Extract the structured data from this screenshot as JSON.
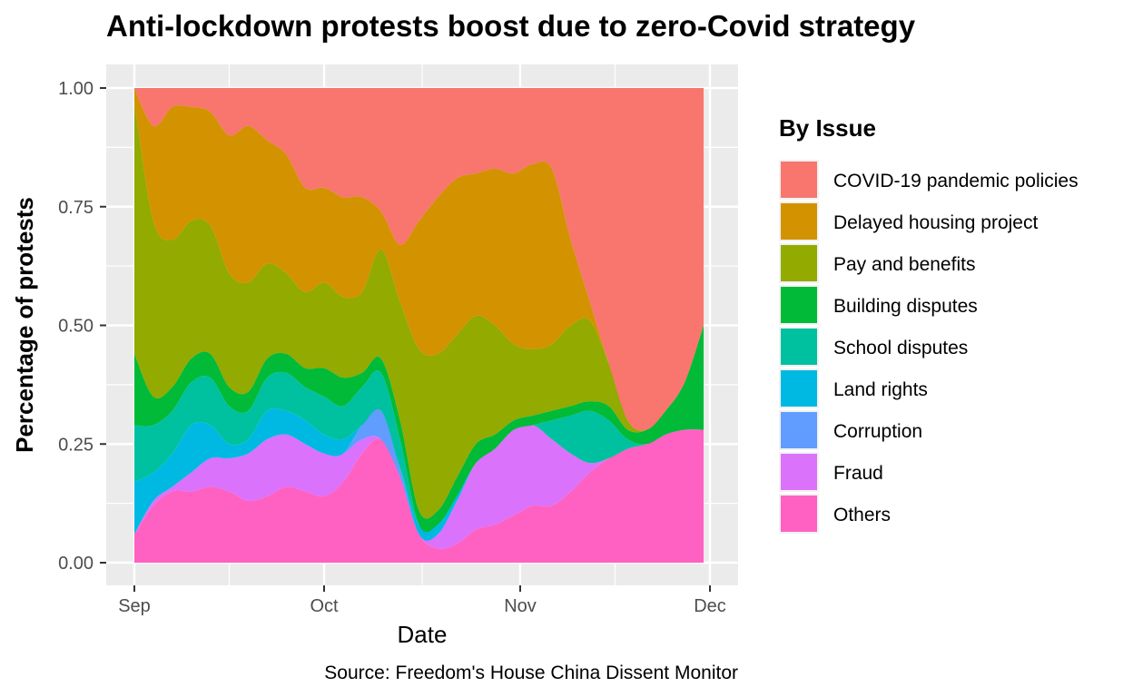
{
  "chart_data": {
    "type": "area",
    "stacked": true,
    "normalized": true,
    "title": "Anti-lockdown protests boost due to zero-Covid strategy",
    "xlabel": "Date",
    "ylabel": "Percentage of protests",
    "caption": "Source: Freedom's House China Dissent Monitor",
    "x_ticks": [
      "Sep",
      "Oct",
      "Nov",
      "Dec"
    ],
    "y_ticks": [
      "0.00",
      "0.25",
      "0.50",
      "0.75",
      "1.00"
    ],
    "ylim": [
      0,
      1
    ],
    "grid": true,
    "legend_title": "By Issue",
    "legend_position": "right",
    "x": [
      "2022-09-01",
      "2022-09-04",
      "2022-09-07",
      "2022-09-10",
      "2022-09-13",
      "2022-09-16",
      "2022-09-19",
      "2022-09-22",
      "2022-09-25",
      "2022-09-28",
      "2022-10-01",
      "2022-10-04",
      "2022-10-07",
      "2022-10-10",
      "2022-10-13",
      "2022-10-16",
      "2022-10-19",
      "2022-10-22",
      "2022-10-25",
      "2022-10-28",
      "2022-10-31",
      "2022-11-03",
      "2022-11-06",
      "2022-11-09",
      "2022-11-12",
      "2022-11-15",
      "2022-11-18",
      "2022-11-21",
      "2022-11-24",
      "2022-11-27",
      "2022-11-30"
    ],
    "series": [
      {
        "name": "Others",
        "color": "#FF61C3",
        "values": [
          0.06,
          0.12,
          0.15,
          0.15,
          0.16,
          0.15,
          0.13,
          0.14,
          0.16,
          0.15,
          0.14,
          0.17,
          0.23,
          0.26,
          0.18,
          0.06,
          0.03,
          0.04,
          0.07,
          0.08,
          0.1,
          0.12,
          0.12,
          0.15,
          0.19,
          0.22,
          0.24,
          0.25,
          0.27,
          0.28,
          0.28
        ]
      },
      {
        "name": "Fraud",
        "color": "#DB72FB",
        "values": [
          0.0,
          0.01,
          0.01,
          0.04,
          0.06,
          0.07,
          0.1,
          0.12,
          0.11,
          0.1,
          0.09,
          0.06,
          0.03,
          0.0,
          0.0,
          0.0,
          0.03,
          0.09,
          0.14,
          0.16,
          0.18,
          0.17,
          0.14,
          0.08,
          0.02,
          0.0,
          0.0,
          0.0,
          0.0,
          0.0,
          0.0
        ]
      },
      {
        "name": "Corruption",
        "color": "#619CFF",
        "values": [
          0.0,
          0.0,
          0.0,
          0.0,
          0.0,
          0.0,
          0.0,
          0.0,
          0.0,
          0.0,
          0.0,
          0.0,
          0.03,
          0.06,
          0.02,
          0.0,
          0.0,
          0.0,
          0.0,
          0.0,
          0.0,
          0.0,
          0.0,
          0.0,
          0.0,
          0.0,
          0.0,
          0.0,
          0.0,
          0.0,
          0.0
        ]
      },
      {
        "name": "Land rights",
        "color": "#00B9E3",
        "values": [
          0.11,
          0.06,
          0.07,
          0.1,
          0.07,
          0.03,
          0.03,
          0.06,
          0.05,
          0.05,
          0.04,
          0.03,
          0.0,
          0.0,
          0.0,
          0.02,
          0.02,
          0.01,
          0.0,
          0.0,
          0.0,
          0.0,
          0.0,
          0.0,
          0.0,
          0.0,
          0.0,
          0.0,
          0.0,
          0.0,
          0.0
        ]
      },
      {
        "name": "School disputes",
        "color": "#00C19F",
        "values": [
          0.12,
          0.1,
          0.09,
          0.09,
          0.1,
          0.08,
          0.06,
          0.07,
          0.08,
          0.07,
          0.08,
          0.07,
          0.08,
          0.08,
          0.06,
          0.0,
          0.0,
          0.0,
          0.0,
          0.0,
          0.0,
          0.0,
          0.04,
          0.08,
          0.11,
          0.08,
          0.02,
          0.0,
          0.0,
          0.0,
          0.0
        ]
      },
      {
        "name": "Building disputes",
        "color": "#00BA38",
        "values": [
          0.15,
          0.06,
          0.05,
          0.05,
          0.05,
          0.04,
          0.04,
          0.04,
          0.04,
          0.04,
          0.06,
          0.06,
          0.03,
          0.03,
          0.04,
          0.03,
          0.03,
          0.04,
          0.04,
          0.03,
          0.02,
          0.02,
          0.02,
          0.02,
          0.02,
          0.03,
          0.02,
          0.03,
          0.05,
          0.1,
          0.22
        ]
      },
      {
        "name": "Pay and benefits",
        "color": "#93AA00",
        "values": [
          0.53,
          0.37,
          0.31,
          0.29,
          0.27,
          0.24,
          0.23,
          0.2,
          0.17,
          0.16,
          0.18,
          0.17,
          0.17,
          0.23,
          0.25,
          0.34,
          0.33,
          0.3,
          0.27,
          0.23,
          0.16,
          0.14,
          0.14,
          0.17,
          0.17,
          0.09,
          0.02,
          0.0,
          0.0,
          0.0,
          0.0
        ]
      },
      {
        "name": "Delayed housing project",
        "color": "#D39200",
        "values": [
          0.03,
          0.2,
          0.28,
          0.24,
          0.24,
          0.29,
          0.33,
          0.26,
          0.25,
          0.22,
          0.2,
          0.21,
          0.2,
          0.08,
          0.12,
          0.27,
          0.33,
          0.33,
          0.3,
          0.33,
          0.36,
          0.39,
          0.37,
          0.18,
          0.04,
          0.0,
          0.0,
          0.0,
          0.0,
          0.0,
          0.0
        ]
      },
      {
        "name": "COVID-19 pandemic policies",
        "color": "#F8766D",
        "values": [
          0.0,
          0.08,
          0.04,
          0.04,
          0.05,
          0.1,
          0.08,
          0.11,
          0.14,
          0.21,
          0.21,
          0.23,
          0.23,
          0.26,
          0.33,
          0.28,
          0.23,
          0.19,
          0.18,
          0.17,
          0.18,
          0.16,
          0.17,
          0.32,
          0.45,
          0.58,
          0.7,
          0.72,
          0.68,
          0.62,
          0.5
        ]
      }
    ]
  }
}
